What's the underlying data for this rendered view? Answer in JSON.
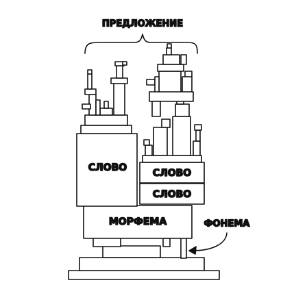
{
  "labels": {
    "sentence": "ПРЕДЛОЖЕНИЕ",
    "word_1": "СЛОВО",
    "word_2": "СЛОВО",
    "word_3": "СЛОВО",
    "morpheme": "МОРФЕМА",
    "phoneme": "ФОНЕМА"
  },
  "colors": {
    "stroke": "#111111",
    "fill": "#ffffff",
    "background": "#ffffff"
  }
}
